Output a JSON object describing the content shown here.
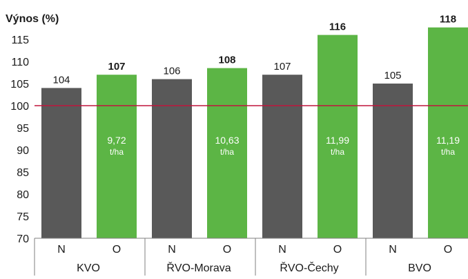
{
  "chart_data": {
    "type": "bar",
    "ylabel": "Výnos (%)",
    "ylim": [
      70,
      120
    ],
    "yticks": [
      70,
      75,
      80,
      85,
      90,
      95,
      100,
      105,
      110,
      115
    ],
    "reference_line": {
      "value": 100,
      "color": "#c0143c"
    },
    "colors": {
      "N": "#595959",
      "O": "#5cb545"
    },
    "groups": [
      {
        "name": "KVO",
        "bars": [
          {
            "category": "N",
            "value": 104,
            "label": "104",
            "bold": false
          },
          {
            "category": "O",
            "value": 107,
            "label": "107",
            "bold": true,
            "yield": "9,72",
            "unit": "t/ha"
          }
        ]
      },
      {
        "name": "ŘVO-Morava",
        "bars": [
          {
            "category": "N",
            "value": 106,
            "label": "106",
            "bold": false
          },
          {
            "category": "O",
            "value": 108.5,
            "label": "108",
            "bold": true,
            "yield": "10,63",
            "unit": "t/ha"
          }
        ]
      },
      {
        "name": "ŘVO-Čechy",
        "bars": [
          {
            "category": "N",
            "value": 107,
            "label": "107",
            "bold": false
          },
          {
            "category": "O",
            "value": 116,
            "label": "116",
            "bold": true,
            "yield": "11,99",
            "unit": "t/ha"
          }
        ]
      },
      {
        "name": "BVO",
        "bars": [
          {
            "category": "N",
            "value": 105,
            "label": "105",
            "bold": false
          },
          {
            "category": "O",
            "value": 117.7,
            "label": "118",
            "bold": true,
            "yield": "11,19",
            "unit": "t/ha"
          }
        ]
      }
    ]
  }
}
